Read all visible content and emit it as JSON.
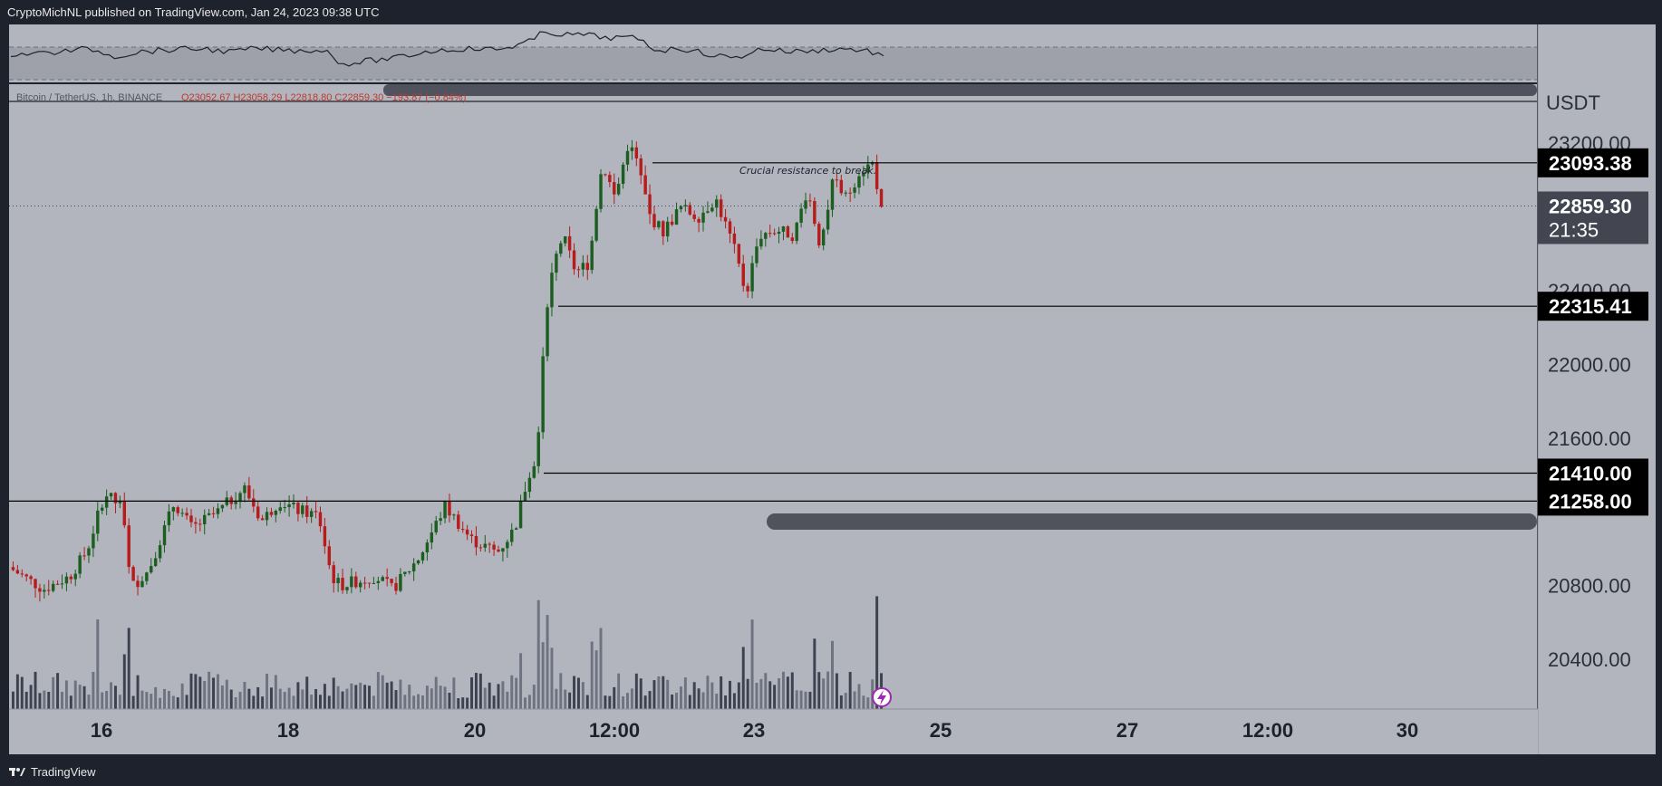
{
  "header": {
    "publisher_line": "CryptoMichNL published on TradingView.com, Jan 24, 2023 09:38 UTC"
  },
  "footer": {
    "brand": "TradingView"
  },
  "colors": {
    "pane_bg": "#b2b5be",
    "up": "#1b5e20",
    "down": "#b71c1c",
    "line_black": "#000000",
    "label_bg": "#000000",
    "current_label_bg": "#434651",
    "rsi_band": "#9598a1",
    "volume": "#3d4150"
  },
  "legend": {
    "symbol": "Bitcoin / TetherUS, 1h, BINANCE",
    "ohlc": "O23052.67  H23058.29  L22818.80  C22859.30  −193.87 (−0.84%)"
  },
  "chart_data": {
    "type": "candlestick",
    "currency": "USDT",
    "ylim": [
      20130,
      23520
    ],
    "y_ticks": [
      "23200.00",
      "22400.00",
      "22000.00",
      "21600.00",
      "20800.00",
      "20400.00"
    ],
    "x_ticks": [
      "16",
      "18",
      "20",
      "12:00",
      "23",
      "25",
      "27",
      "12:00",
      "30"
    ],
    "horizontal_levels": [
      {
        "value": "23093.38",
        "price": 23093.38
      },
      {
        "value": "22315.41",
        "price": 22315.41
      },
      {
        "value": "21410.00",
        "price": 21410.0
      },
      {
        "value": "21258.00",
        "price": 21258.0
      }
    ],
    "current_price": {
      "value": "22859.30",
      "price": 22859.3,
      "countdown": "21:35"
    },
    "annotation": "Crucial resistance to break.",
    "price_path_anchors": [
      [
        0,
        20900
      ],
      [
        0.04,
        20780
      ],
      [
        0.07,
        20850
      ],
      [
        0.09,
        20990
      ],
      [
        0.11,
        21300
      ],
      [
        0.13,
        21220
      ],
      [
        0.14,
        20790
      ],
      [
        0.16,
        20880
      ],
      [
        0.19,
        21250
      ],
      [
        0.21,
        21110
      ],
      [
        0.24,
        21200
      ],
      [
        0.27,
        21330
      ],
      [
        0.29,
        21150
      ],
      [
        0.31,
        21260
      ],
      [
        0.33,
        21210
      ],
      [
        0.355,
        21180
      ],
      [
        0.37,
        20850
      ],
      [
        0.38,
        20800
      ],
      [
        0.42,
        20850
      ],
      [
        0.44,
        20780
      ],
      [
        0.47,
        20950
      ],
      [
        0.5,
        21230
      ],
      [
        0.53,
        21050
      ],
      [
        0.56,
        20980
      ],
      [
        0.58,
        21110
      ],
      [
        0.595,
        21380
      ],
      [
        0.605,
        21500
      ],
      [
        0.615,
        22270
      ],
      [
        0.625,
        22550
      ],
      [
        0.635,
        22700
      ],
      [
        0.65,
        22500
      ],
      [
        0.665,
        22550
      ],
      [
        0.68,
        23100
      ],
      [
        0.695,
        22900
      ],
      [
        0.71,
        23200
      ],
      [
        0.72,
        23100
      ],
      [
        0.735,
        22800
      ],
      [
        0.75,
        22720
      ],
      [
        0.77,
        22850
      ],
      [
        0.79,
        22800
      ],
      [
        0.81,
        22900
      ],
      [
        0.83,
        22650
      ],
      [
        0.845,
        22380
      ],
      [
        0.86,
        22700
      ],
      [
        0.88,
        22730
      ],
      [
        0.9,
        22700
      ],
      [
        0.915,
        22950
      ],
      [
        0.93,
        22650
      ],
      [
        0.945,
        23000
      ],
      [
        0.96,
        22900
      ],
      [
        0.975,
        23050
      ],
      [
        0.99,
        23090
      ],
      [
        1.0,
        22860
      ]
    ],
    "rsi_path_anchors": [
      [
        0,
        0.52
      ],
      [
        0.05,
        0.48
      ],
      [
        0.09,
        0.4
      ],
      [
        0.12,
        0.56
      ],
      [
        0.15,
        0.46
      ],
      [
        0.19,
        0.42
      ],
      [
        0.22,
        0.4
      ],
      [
        0.25,
        0.47
      ],
      [
        0.28,
        0.4
      ],
      [
        0.32,
        0.44
      ],
      [
        0.36,
        0.43
      ],
      [
        0.38,
        0.72
      ],
      [
        0.41,
        0.65
      ],
      [
        0.44,
        0.6
      ],
      [
        0.48,
        0.45
      ],
      [
        0.52,
        0.4
      ],
      [
        0.56,
        0.42
      ],
      [
        0.6,
        0.22
      ],
      [
        0.61,
        0.05
      ],
      [
        0.635,
        0.12
      ],
      [
        0.66,
        0.12
      ],
      [
        0.68,
        0.18
      ],
      [
        0.705,
        0.18
      ],
      [
        0.72,
        0.2
      ],
      [
        0.74,
        0.44
      ],
      [
        0.77,
        0.4
      ],
      [
        0.8,
        0.52
      ],
      [
        0.83,
        0.6
      ],
      [
        0.86,
        0.4
      ],
      [
        0.89,
        0.46
      ],
      [
        0.92,
        0.45
      ],
      [
        0.95,
        0.4
      ],
      [
        0.98,
        0.44
      ],
      [
        1.0,
        0.55
      ]
    ],
    "candle_count": 196
  }
}
